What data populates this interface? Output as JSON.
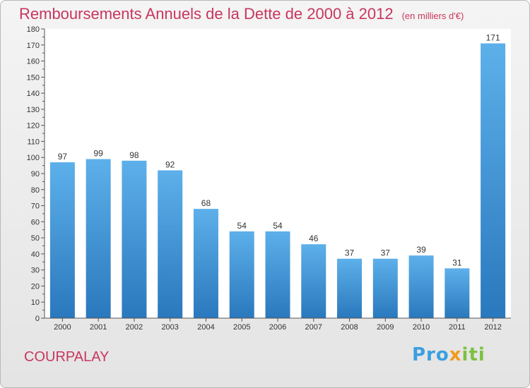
{
  "title": "Remboursements Annuels de la Dette de 2000 à 2012",
  "subtitle": "(en milliers d'€)",
  "place": "COURPALAY",
  "logo": {
    "p1": "Pro",
    "p2": "x",
    "p3": "iti"
  },
  "colors": {
    "bar_top": "#5db0ea",
    "bar_bottom": "#2a78bd",
    "title": "#c8365f"
  },
  "chart_data": {
    "type": "bar",
    "categories": [
      "2000",
      "2001",
      "2002",
      "2003",
      "2004",
      "2005",
      "2006",
      "2007",
      "2008",
      "2009",
      "2010",
      "2011",
      "2012"
    ],
    "values": [
      97,
      99,
      98,
      92,
      68,
      54,
      54,
      46,
      37,
      37,
      39,
      31,
      171
    ],
    "ylim": [
      0,
      180
    ],
    "yticks": [
      0,
      10,
      20,
      30,
      40,
      50,
      60,
      70,
      80,
      90,
      100,
      110,
      120,
      130,
      140,
      150,
      160,
      170,
      180
    ],
    "grid": false
  }
}
